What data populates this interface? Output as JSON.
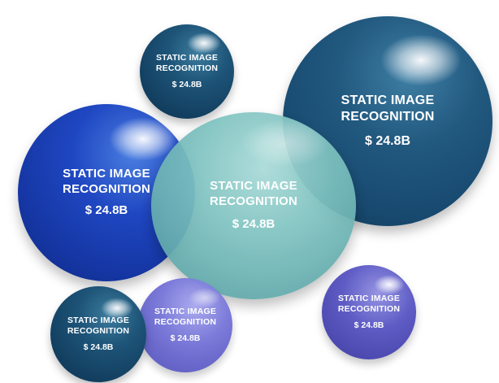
{
  "bubbles": {
    "top": {
      "line1": "STATIC IMAGE",
      "line2": "RECOGNITION",
      "amount": "$ 24.8B"
    },
    "right": {
      "line1": "STATIC IMAGE",
      "line2": "RECOGNITION",
      "amount": "$ 24.8B"
    },
    "left": {
      "line1": "STATIC IMAGE",
      "line2": "RECOGNITION",
      "amount": "$ 24.8B"
    },
    "center": {
      "line1": "STATIC IMAGE",
      "line2": "RECOGNITION",
      "amount": "$ 24.8B"
    },
    "bottom_left": {
      "line1": "STATIC IMAGE",
      "line2": "RECOGNITION",
      "amount": "$ 24.8B"
    },
    "bottom_middle": {
      "line1": "STATIC IMAGE",
      "line2": "RECOGNITION",
      "amount": "$ 24.8B"
    },
    "bottom_right": {
      "line1": "STATIC IMAGE",
      "line2": "RECOGNITION",
      "amount": "$ 24.8B"
    }
  },
  "colors": {
    "navy": "#1d5478",
    "blue": "#1f47c2",
    "teal": "#7ec2c0",
    "purple": "#5f5dc5",
    "text": "#ffffff"
  }
}
